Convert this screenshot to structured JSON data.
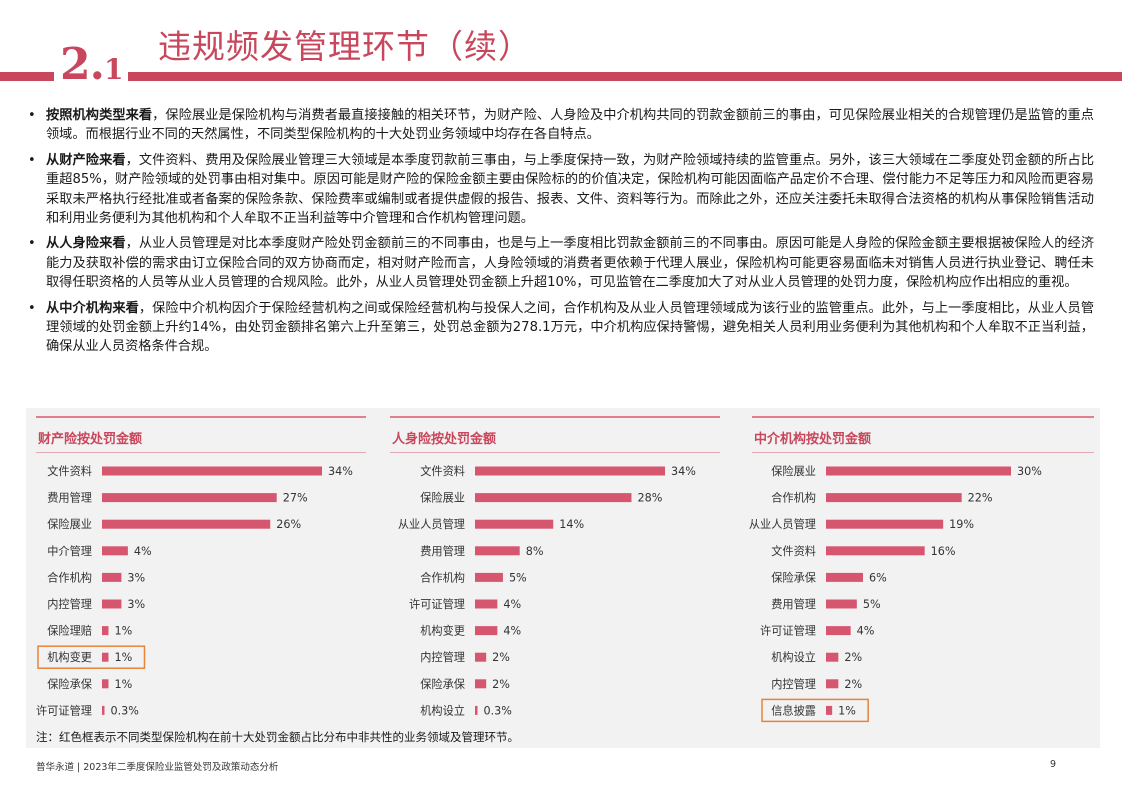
{
  "header": {
    "section_number": "2",
    "section_dot": ".",
    "section_sub": "1",
    "title": "违规频发管理环节（续）"
  },
  "bullets": [
    {
      "lead": "按照机构类型来看",
      "text": "，保险展业是保险机构与消费者最直接接触的相关环节，为财产险、人身险及中介机构共同的罚款金额前三的事由，可见保险展业相关的合规管理仍是监管的重点领域。而根据行业不同的天然属性，不同类型保险机构的十大处罚业务领域中均存在各自特点。"
    },
    {
      "lead": "从财产险来看",
      "text": "，文件资料、费用及保险展业管理三大领域是本季度罚款前三事由，与上季度保持一致，为财产险领域持续的监管重点。另外，该三大领域在二季度处罚金额的所占比重超85%，财产险领域的处罚事由相对集中。原因可能是财产险的保险金额主要由保险标的的价值决定，保险机构可能因面临产品定价不合理、偿付能力不足等压力和风险而更容易采取未严格执行经批准或者备案的保险条款、保险费率或编制或者提供虚假的报告、报表、文件、资料等行为。而除此之外，还应关注委托未取得合法资格的机构从事保险销售活动和利用业务便利为其他机构和个人牟取不正当利益等中介管理和合作机构管理问题。"
    },
    {
      "lead": "从人身险来看",
      "text": "，从业人员管理是对比本季度财产险处罚金额前三的不同事由，也是与上一季度相比罚款金额前三的不同事由。原因可能是人身险的保险金额主要根据被保险人的经济能力及获取补偿的需求由订立保险合同的双方协商而定，相对财产险而言，人身险领域的消费者更依赖于代理人展业，保险机构可能更容易面临未对销售人员进行执业登记、聘任未取得任职资格的人员等从业人员管理的合规风险。此外，从业人员管理处罚金额上升超10%，可见监管在二季度加大了对从业人员管理的处罚力度，保险机构应作出相应的重视。"
    },
    {
      "lead": "从中介机构来看",
      "text": "，保险中介机构因介于保险经营机构之间或保险经营机构与投保人之间，合作机构及从业人员管理领域成为该行业的监管重点。此外，与上一季度相比，从业人员管理领域的处罚金额上升约14%，由处罚金额排名第六上升至第三，处罚总金额为278.1万元，中介机构应保持警惕，避免相关人员利用业务便利为其他机构和个人牟取不正当利益，确保从业人员资格条件合规。"
    }
  ],
  "chart_data": [
    {
      "type": "bar",
      "orientation": "horizontal",
      "title": "财产险按处罚金额",
      "categories": [
        "文件资料",
        "费用管理",
        "保险展业",
        "中介管理",
        "合作机构",
        "内控管理",
        "保险理赔",
        "机构变更",
        "保险承保",
        "许可证管理"
      ],
      "values": [
        34,
        27,
        26,
        4,
        3,
        3,
        1,
        1,
        1,
        0.3
      ],
      "value_labels": [
        "34%",
        "27%",
        "26%",
        "4%",
        "3%",
        "3%",
        "1%",
        "1%",
        "1%",
        "0.3%"
      ],
      "highlighted": [
        "机构变更"
      ],
      "unit": "%"
    },
    {
      "type": "bar",
      "orientation": "horizontal",
      "title": "人身险按处罚金额",
      "categories": [
        "文件资料",
        "保险展业",
        "从业人员管理",
        "费用管理",
        "合作机构",
        "许可证管理",
        "机构变更",
        "内控管理",
        "保险承保",
        "机构设立"
      ],
      "values": [
        34,
        28,
        14,
        8,
        5,
        4,
        4,
        2,
        2,
        0.3
      ],
      "value_labels": [
        "34%",
        "28%",
        "14%",
        "8%",
        "5%",
        "4%",
        "4%",
        "2%",
        "2%",
        "0.3%"
      ],
      "highlighted": [],
      "unit": "%"
    },
    {
      "type": "bar",
      "orientation": "horizontal",
      "title": "中介机构按处罚金额",
      "categories": [
        "保险展业",
        "合作机构",
        "从业人员管理",
        "文件资料",
        "保险承保",
        "费用管理",
        "许可证管理",
        "机构设立",
        "内控管理",
        "信息披露"
      ],
      "values": [
        30,
        22,
        19,
        16,
        6,
        5,
        4,
        2,
        2,
        1
      ],
      "value_labels": [
        "30%",
        "22%",
        "19%",
        "16%",
        "6%",
        "5%",
        "4%",
        "2%",
        "2%",
        "1%"
      ],
      "highlighted": [
        "信息披露"
      ],
      "unit": "%"
    }
  ],
  "colors": {
    "accent": "#c8475c",
    "bar": "#d6566f",
    "highlight_box": "#e8843a",
    "band": "#f2f2f2"
  },
  "note": "注：红色框表示不同类型保险机构在前十大处罚金额占比分布中非共性的业务领域及管理环节。",
  "footer": {
    "left": "普华永道 | 2023年二季度保险业监管处罚及政策动态分析",
    "page": "9"
  }
}
